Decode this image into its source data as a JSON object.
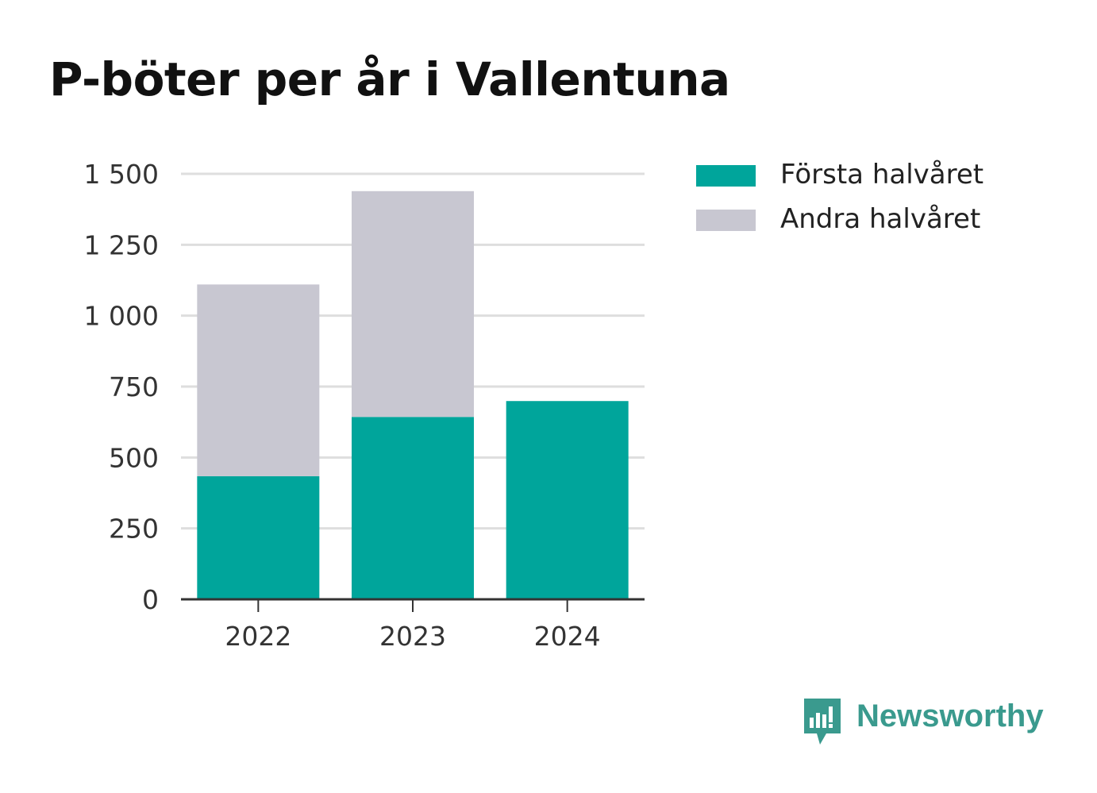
{
  "chart_data": {
    "type": "bar",
    "stacked": true,
    "title": "P-böter per år i Vallentuna",
    "categories": [
      "2022",
      "2023",
      "2024"
    ],
    "series": [
      {
        "name": "Första halvåret",
        "values": [
          434,
          643,
          699
        ],
        "color": "#00a59b"
      },
      {
        "name": "Andra halvåret",
        "values": [
          676,
          796,
          0
        ],
        "color": "#c8c7d1"
      }
    ],
    "ylim": [
      0,
      1500
    ],
    "yticks": [
      0,
      250,
      500,
      750,
      1000,
      1250,
      1500
    ],
    "ytick_labels": [
      "0",
      "250",
      "500",
      "750",
      "1 000",
      "1 250",
      "1 500"
    ],
    "xlabel": "",
    "ylabel": "",
    "grid": true,
    "legend_position": "right"
  },
  "brand": {
    "name": "Newsworthy",
    "color": "#3a9a8e",
    "icon": "newsworthy-logo-icon"
  }
}
